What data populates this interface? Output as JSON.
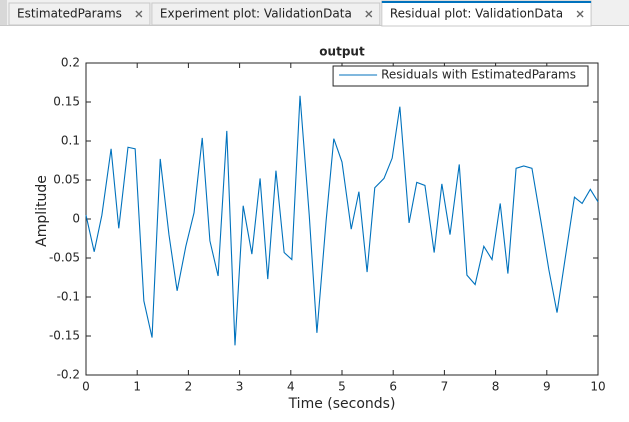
{
  "tabs": [
    {
      "label": "EstimatedParams"
    },
    {
      "label": "Experiment plot: ValidationData"
    },
    {
      "label": "Residual plot: ValidationData",
      "active": true
    }
  ],
  "chart_data": {
    "type": "line",
    "title": "output",
    "x_label": "Time (seconds)",
    "y_label": "Amplitude",
    "x": [
      0,
      0.16,
      0.31,
      0.49,
      0.64,
      0.82,
      0.96,
      1.13,
      1.29,
      1.45,
      1.62,
      1.78,
      1.95,
      2.11,
      2.27,
      2.42,
      2.58,
      2.75,
      2.91,
      3.07,
      3.24,
      3.4,
      3.55,
      3.71,
      3.87,
      4.02,
      4.18,
      4.36,
      4.51,
      4.69,
      4.84,
      5.0,
      5.18,
      5.33,
      5.49,
      5.64,
      5.82,
      5.98,
      6.13,
      6.31,
      6.46,
      6.62,
      6.8,
      6.95,
      7.11,
      7.29,
      7.44,
      7.6,
      7.77,
      7.93,
      8.09,
      8.24,
      8.4,
      8.55,
      8.71,
      8.89,
      9.04,
      9.2,
      9.36,
      9.54,
      9.69,
      9.85,
      10
    ],
    "series": [
      {
        "name": "Residuals with EstimatedParams",
        "color": "#0072bd",
        "values": [
          0.005,
          -0.042,
          0.005,
          0.09,
          -0.012,
          0.092,
          0.09,
          -0.105,
          -0.152,
          0.077,
          -0.02,
          -0.092,
          -0.035,
          0.008,
          0.104,
          -0.028,
          -0.073,
          0.113,
          -0.162,
          0.017,
          -0.045,
          0.052,
          -0.077,
          0.062,
          -0.043,
          -0.052,
          0.158,
          0.005,
          -0.146,
          -0.002,
          0.103,
          0.073,
          -0.013,
          0.035,
          -0.068,
          0.04,
          0.052,
          0.078,
          0.144,
          -0.005,
          0.047,
          0.043,
          -0.043,
          0.045,
          -0.02,
          0.07,
          -0.072,
          -0.084,
          -0.035,
          -0.052,
          0.02,
          -0.07,
          0.065,
          0.068,
          0.065,
          -0.005,
          -0.065,
          -0.12,
          -0.05,
          0.028,
          0.02,
          0.038,
          0.022
        ]
      }
    ],
    "xlim": [
      0,
      10
    ],
    "xticks": [
      0,
      1,
      2,
      3,
      4,
      5,
      6,
      7,
      8,
      9,
      10
    ],
    "ylim": [
      -0.2,
      0.2
    ],
    "yticks": [
      -0.2,
      -0.15,
      -0.1,
      -0.05,
      0,
      0.05,
      0.1,
      0.15,
      0.2
    ],
    "legend": "top-right",
    "grid": false
  }
}
